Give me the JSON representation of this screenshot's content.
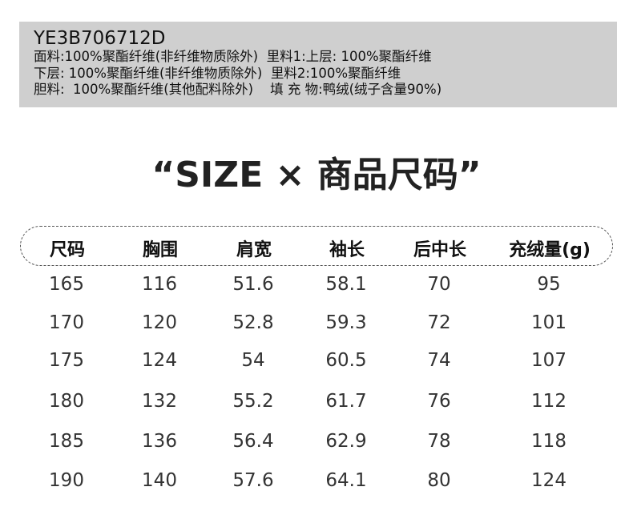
{
  "info": {
    "code": "YE3B706712D",
    "lines": [
      "面料:100%聚酯纤维(非纤维物质除外)  里料1:上层: 100%聚酯纤维",
      "下层: 100%聚酯纤维(非纤维物质除外)  里料2:100%聚酯纤维",
      "胆料:  100%聚酯纤维(其他配料除外)    填 充 物:鸭绒(绒子含量90%)"
    ]
  },
  "title": "“SIZE × 商品尺码”",
  "table": {
    "headers": [
      "尺码",
      "胸围",
      "肩宽",
      "袖长",
      "后中长",
      "充绒量(g)"
    ],
    "rows": [
      [
        "165",
        "116",
        "51.6",
        "58.1",
        "70",
        "95"
      ],
      [
        "170",
        "120",
        "52.8",
        "59.3",
        "72",
        "101"
      ],
      [
        "175",
        "124",
        "54",
        "60.5",
        "74",
        "107"
      ],
      [
        "180",
        "132",
        "55.2",
        "61.7",
        "76",
        "112"
      ],
      [
        "185",
        "136",
        "56.4",
        "62.9",
        "78",
        "118"
      ],
      [
        "190",
        "140",
        "57.6",
        "64.1",
        "80",
        "124"
      ]
    ]
  }
}
